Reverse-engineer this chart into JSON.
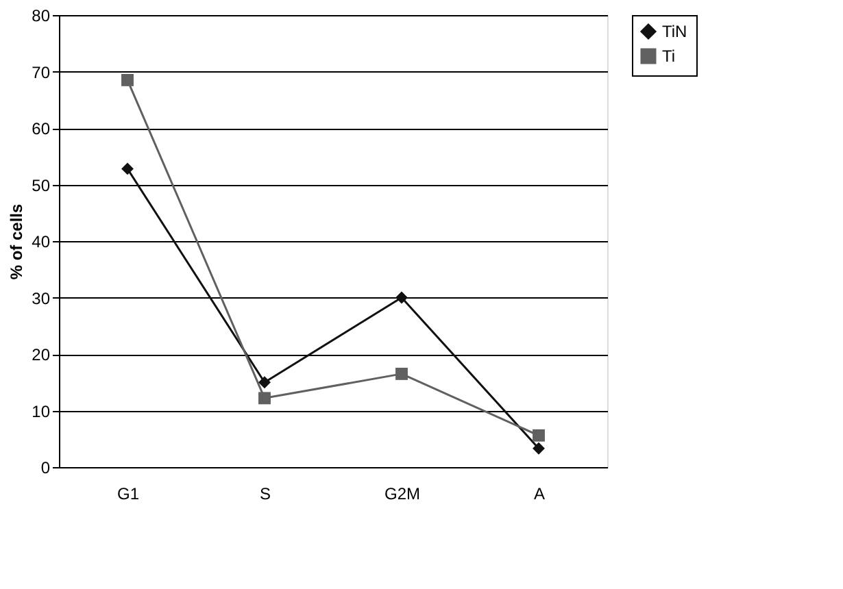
{
  "chart_data": {
    "type": "line",
    "ylabel": "% of cells",
    "categories": [
      "G1",
      "S",
      "G2M",
      "A"
    ],
    "series": [
      {
        "name": "TiN",
        "color": "#111111",
        "marker": "diamond",
        "values": [
          52.8,
          15,
          30,
          3.3
        ]
      },
      {
        "name": "Ti",
        "color": "#606060",
        "marker": "square",
        "values": [
          68.5,
          12.2,
          16.5,
          5.6
        ]
      }
    ],
    "ylim": [
      0,
      80
    ],
    "yticks": [
      0,
      10,
      20,
      30,
      40,
      50,
      60,
      70,
      80
    ],
    "grid": "y",
    "legend": "right"
  }
}
